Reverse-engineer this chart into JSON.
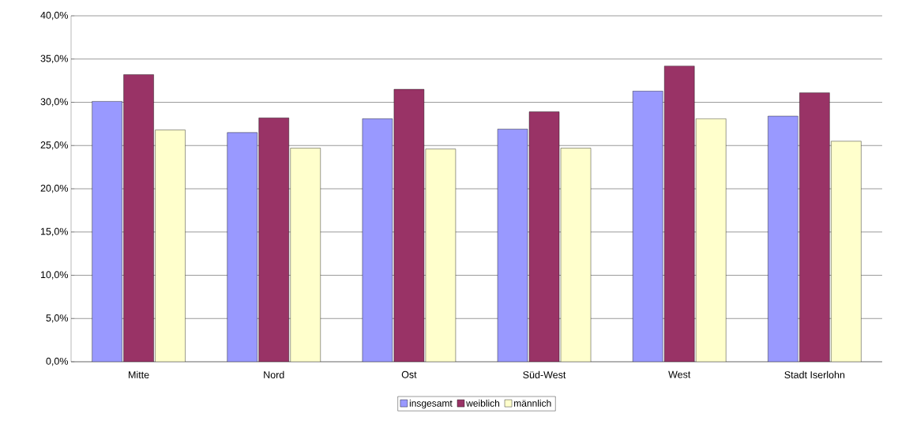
{
  "chart_data": {
    "type": "bar",
    "categories": [
      "Mitte",
      "Nord",
      "Ost",
      "Süd-West",
      "West",
      "Stadt Iserlohn"
    ],
    "series": [
      {
        "name": "insgesamt",
        "color": "#9999ff",
        "values": [
          30.1,
          26.5,
          28.1,
          26.9,
          31.3,
          28.4
        ]
      },
      {
        "name": "weiblich",
        "color": "#993366",
        "values": [
          33.2,
          28.2,
          31.5,
          28.9,
          34.2,
          31.1
        ]
      },
      {
        "name": "männlich",
        "color": "#ffffcc",
        "values": [
          26.8,
          24.7,
          24.6,
          24.7,
          28.1,
          25.5
        ]
      }
    ],
    "ylim": [
      0,
      40
    ],
    "yticks": [
      {
        "value": 0,
        "label": "0,0%"
      },
      {
        "value": 5,
        "label": "5,0%"
      },
      {
        "value": 10,
        "label": "10,0%"
      },
      {
        "value": 15,
        "label": "15,0%"
      },
      {
        "value": 20,
        "label": "20,0%"
      },
      {
        "value": 25,
        "label": "25,0%"
      },
      {
        "value": 30,
        "label": "30,0%"
      },
      {
        "value": 35,
        "label": "35,0%"
      },
      {
        "value": 40,
        "label": "40,0%"
      }
    ],
    "grid": "y",
    "legend": "bottom"
  }
}
